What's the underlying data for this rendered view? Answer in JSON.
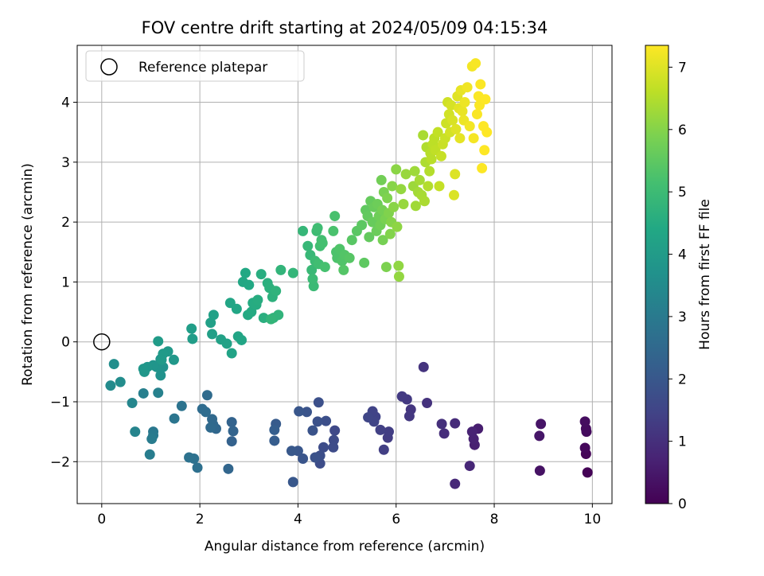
{
  "chart_data": {
    "type": "scatter",
    "title": "FOV centre drift starting at 2024/05/09 04:15:34",
    "xlabel": "Angular distance from reference (arcmin)",
    "ylabel": "Rotation from reference (arcmin)",
    "xlim": [
      -0.5,
      10.4
    ],
    "ylim": [
      -2.7,
      4.95
    ],
    "xticks": [
      0,
      2,
      4,
      6,
      8,
      10
    ],
    "yticks": [
      -2,
      -1,
      0,
      1,
      2,
      3,
      4
    ],
    "grid": true,
    "legend": {
      "position": "top-left",
      "entries": [
        "Reference platepar"
      ]
    },
    "reference_point": {
      "label": "Reference platepar",
      "x": 0,
      "y": 0
    },
    "colorbar": {
      "label": "Hours from first FF file",
      "colormap": "viridis",
      "range": [
        0,
        7.35
      ],
      "ticks": [
        0,
        1,
        2,
        3,
        4,
        5,
        6,
        7
      ]
    },
    "points": [
      [
        9.9,
        -2.18,
        0.05
      ],
      [
        9.87,
        -1.87,
        0.1
      ],
      [
        9.85,
        -1.77,
        0.15
      ],
      [
        9.88,
        -1.5,
        0.2
      ],
      [
        9.87,
        -1.45,
        0.22
      ],
      [
        9.85,
        -1.33,
        0.25
      ],
      [
        8.93,
        -2.15,
        0.35
      ],
      [
        8.95,
        -1.37,
        0.4
      ],
      [
        8.92,
        -1.57,
        0.45
      ],
      [
        7.67,
        -1.45,
        0.6
      ],
      [
        7.6,
        -1.72,
        0.65
      ],
      [
        7.58,
        -1.62,
        0.7
      ],
      [
        7.55,
        -1.5,
        0.72
      ],
      [
        7.5,
        -2.07,
        0.8
      ],
      [
        7.2,
        -2.37,
        0.85
      ],
      [
        7.2,
        -1.36,
        0.9
      ],
      [
        6.98,
        -1.53,
        0.95
      ],
      [
        6.93,
        -1.37,
        1.0
      ],
      [
        6.63,
        -1.02,
        1.05
      ],
      [
        6.56,
        -0.42,
        1.1
      ],
      [
        6.3,
        -1.13,
        1.15
      ],
      [
        6.27,
        -1.24,
        1.2
      ],
      [
        6.22,
        -0.96,
        1.22
      ],
      [
        6.12,
        -0.91,
        1.25
      ],
      [
        5.83,
        -1.6,
        1.3
      ],
      [
        5.85,
        -1.5,
        1.33
      ],
      [
        5.75,
        -1.8,
        1.36
      ],
      [
        5.68,
        -1.47,
        1.4
      ],
      [
        5.58,
        -1.25,
        1.45
      ],
      [
        5.52,
        -1.16,
        1.48
      ],
      [
        5.55,
        -1.33,
        1.5
      ],
      [
        5.43,
        -1.26,
        1.53
      ],
      [
        4.75,
        -1.48,
        1.6
      ],
      [
        4.73,
        -1.64,
        1.65
      ],
      [
        4.72,
        -1.76,
        1.68
      ],
      [
        4.52,
        -1.76,
        1.7
      ],
      [
        4.45,
        -2.03,
        1.72
      ],
      [
        4.45,
        -1.9,
        1.75
      ],
      [
        4.57,
        -1.32,
        1.78
      ],
      [
        4.42,
        -1.01,
        1.8
      ],
      [
        4.4,
        -1.33,
        1.82
      ],
      [
        4.35,
        -1.93,
        1.85
      ],
      [
        4.3,
        -1.48,
        1.88
      ],
      [
        4.18,
        -1.17,
        1.9
      ],
      [
        4.1,
        -1.95,
        1.92
      ],
      [
        4.0,
        -1.82,
        1.95
      ],
      [
        4.02,
        -1.16,
        1.97
      ],
      [
        3.9,
        -2.34,
        2.0
      ],
      [
        3.87,
        -1.82,
        2.02
      ],
      [
        3.55,
        -1.37,
        2.1
      ],
      [
        3.52,
        -1.65,
        2.15
      ],
      [
        3.52,
        -1.47,
        2.18
      ],
      [
        2.65,
        -1.66,
        2.3
      ],
      [
        2.65,
        -1.34,
        2.33
      ],
      [
        2.68,
        -1.49,
        2.36
      ],
      [
        2.58,
        -2.12,
        2.4
      ],
      [
        2.33,
        -1.45,
        2.45
      ],
      [
        2.27,
        -1.38,
        2.48
      ],
      [
        2.25,
        -1.29,
        2.5
      ],
      [
        2.22,
        -1.43,
        2.52
      ],
      [
        2.15,
        -0.89,
        2.55
      ],
      [
        2.12,
        -1.17,
        2.58
      ],
      [
        2.05,
        -1.12,
        2.6
      ],
      [
        1.95,
        -2.1,
        2.7
      ],
      [
        1.88,
        -1.95,
        2.73
      ],
      [
        1.78,
        -1.93,
        2.76
      ],
      [
        1.63,
        -1.07,
        2.8
      ],
      [
        1.48,
        -1.28,
        2.85
      ],
      [
        1.05,
        -1.5,
        2.95
      ],
      [
        1.05,
        -1.56,
        3.0
      ],
      [
        1.02,
        -1.62,
        3.05
      ],
      [
        0.98,
        -1.88,
        3.1
      ],
      [
        0.85,
        -0.86,
        3.15
      ],
      [
        1.15,
        -0.85,
        3.2
      ],
      [
        0.68,
        -1.5,
        3.3
      ],
      [
        0.62,
        -1.02,
        3.35
      ],
      [
        0.18,
        -0.73,
        3.5
      ],
      [
        0.38,
        -0.67,
        3.55
      ],
      [
        0.25,
        -0.37,
        3.6
      ],
      [
        1.2,
        -0.56,
        3.7
      ],
      [
        1.25,
        -0.42,
        3.72
      ],
      [
        1.2,
        -0.29,
        3.75
      ],
      [
        1.12,
        -0.42,
        3.78
      ],
      [
        1.05,
        -0.39,
        3.8
      ],
      [
        0.93,
        -0.42,
        3.82
      ],
      [
        0.87,
        -0.5,
        3.85
      ],
      [
        0.85,
        -0.45,
        3.87
      ],
      [
        1.47,
        -0.3,
        3.9
      ],
      [
        1.35,
        -0.16,
        3.92
      ],
      [
        1.25,
        -0.2,
        3.95
      ],
      [
        1.22,
        -0.3,
        3.97
      ],
      [
        1.15,
        0.01,
        4.0
      ],
      [
        1.85,
        0.05,
        4.05
      ],
      [
        1.83,
        0.22,
        4.08
      ],
      [
        2.25,
        0.13,
        4.12
      ],
      [
        2.22,
        0.32,
        4.15
      ],
      [
        2.28,
        0.45,
        4.18
      ],
      [
        2.43,
        0.04,
        4.2
      ],
      [
        2.55,
        -0.03,
        4.22
      ],
      [
        2.65,
        -0.19,
        4.25
      ],
      [
        2.78,
        0.09,
        4.28
      ],
      [
        2.85,
        0.03,
        4.3
      ],
      [
        2.62,
        0.65,
        4.33
      ],
      [
        2.75,
        0.55,
        4.36
      ],
      [
        2.88,
        1.0,
        4.38
      ],
      [
        2.93,
        1.15,
        4.4
      ],
      [
        3.0,
        0.95,
        4.42
      ],
      [
        2.98,
        0.45,
        4.45
      ],
      [
        3.05,
        0.5,
        4.48
      ],
      [
        3.08,
        0.65,
        4.5
      ],
      [
        3.15,
        0.62,
        4.52
      ],
      [
        3.18,
        0.7,
        4.55
      ],
      [
        3.25,
        1.13,
        4.57
      ],
      [
        3.3,
        0.4,
        4.6
      ],
      [
        3.38,
        0.98,
        4.63
      ],
      [
        3.42,
        0.9,
        4.65
      ],
      [
        3.48,
        0.75,
        4.67
      ],
      [
        3.5,
        0.4,
        4.7
      ],
      [
        3.55,
        0.85,
        4.72
      ],
      [
        3.6,
        0.45,
        4.75
      ],
      [
        3.65,
        1.2,
        4.78
      ],
      [
        3.45,
        0.38,
        4.8
      ],
      [
        3.9,
        1.15,
        4.82
      ],
      [
        4.1,
        1.85,
        4.85
      ],
      [
        4.2,
        1.6,
        4.88
      ],
      [
        4.25,
        1.45,
        4.9
      ],
      [
        4.28,
        1.2,
        4.92
      ],
      [
        4.32,
        0.93,
        4.95
      ],
      [
        4.3,
        1.05,
        4.97
      ],
      [
        4.35,
        1.35,
        5.0
      ],
      [
        4.38,
        1.85,
        5.02
      ],
      [
        4.4,
        1.9,
        5.05
      ],
      [
        4.42,
        1.3,
        5.08
      ],
      [
        4.45,
        1.6,
        5.1
      ],
      [
        4.48,
        1.7,
        5.12
      ],
      [
        4.5,
        1.65,
        5.15
      ],
      [
        4.55,
        1.25,
        5.17
      ],
      [
        4.75,
        2.1,
        5.2
      ],
      [
        4.72,
        1.85,
        5.22
      ],
      [
        4.78,
        1.5,
        5.25
      ],
      [
        4.8,
        1.4,
        5.27
      ],
      [
        4.85,
        1.55,
        5.3
      ],
      [
        4.9,
        1.35,
        5.32
      ],
      [
        4.95,
        1.45,
        5.35
      ],
      [
        4.93,
        1.2,
        5.37
      ],
      [
        5.05,
        1.4,
        5.4
      ],
      [
        5.1,
        1.7,
        5.42
      ],
      [
        5.2,
        1.85,
        5.45
      ],
      [
        5.3,
        1.95,
        5.47
      ],
      [
        5.35,
        1.32,
        5.5
      ],
      [
        5.38,
        2.2,
        5.52
      ],
      [
        5.42,
        2.1,
        5.55
      ],
      [
        5.45,
        1.75,
        5.57
      ],
      [
        5.48,
        2.35,
        5.6
      ],
      [
        5.52,
        2.0,
        5.62
      ],
      [
        5.55,
        2.25,
        5.65
      ],
      [
        5.6,
        1.85,
        5.67
      ],
      [
        5.62,
        2.3,
        5.7
      ],
      [
        5.65,
        2.1,
        5.72
      ],
      [
        5.68,
        1.95,
        5.75
      ],
      [
        5.7,
        2.7,
        5.77
      ],
      [
        5.72,
        2.2,
        5.8
      ],
      [
        5.73,
        1.7,
        5.82
      ],
      [
        5.75,
        2.5,
        5.85
      ],
      [
        5.78,
        2.05,
        5.87
      ],
      [
        5.8,
        1.25,
        5.9
      ],
      [
        5.82,
        2.4,
        5.92
      ],
      [
        5.85,
        2.15,
        5.95
      ],
      [
        5.88,
        1.8,
        5.97
      ],
      [
        5.9,
        2.0,
        6.0
      ],
      [
        5.92,
        2.6,
        6.02
      ],
      [
        5.95,
        2.25,
        6.05
      ],
      [
        6.0,
        2.88,
        6.07
      ],
      [
        6.02,
        1.92,
        6.1
      ],
      [
        6.05,
        1.27,
        6.12
      ],
      [
        6.06,
        1.09,
        6.15
      ],
      [
        6.1,
        2.55,
        6.17
      ],
      [
        6.15,
        2.3,
        6.2
      ],
      [
        6.2,
        2.8,
        6.22
      ],
      [
        6.35,
        2.6,
        6.25
      ],
      [
        6.38,
        2.85,
        6.28
      ],
      [
        6.4,
        2.27,
        6.3
      ],
      [
        6.45,
        2.5,
        6.33
      ],
      [
        6.48,
        2.7,
        6.35
      ],
      [
        6.52,
        2.45,
        6.38
      ],
      [
        6.55,
        3.45,
        6.4
      ],
      [
        6.58,
        2.35,
        6.42
      ],
      [
        6.6,
        3.0,
        6.45
      ],
      [
        6.62,
        3.25,
        6.47
      ],
      [
        6.65,
        2.6,
        6.5
      ],
      [
        6.68,
        2.85,
        6.52
      ],
      [
        6.7,
        3.15,
        6.55
      ],
      [
        6.72,
        3.05,
        6.57
      ],
      [
        6.75,
        3.3,
        6.6
      ],
      [
        6.78,
        3.4,
        6.62
      ],
      [
        6.8,
        3.2,
        6.65
      ],
      [
        6.85,
        3.5,
        6.67
      ],
      [
        6.88,
        2.6,
        6.7
      ],
      [
        6.92,
        3.1,
        6.72
      ],
      [
        6.95,
        3.3,
        6.75
      ],
      [
        7.0,
        3.4,
        6.77
      ],
      [
        7.02,
        3.65,
        6.8
      ],
      [
        7.05,
        4.0,
        6.82
      ],
      [
        7.08,
        3.8,
        6.85
      ],
      [
        7.1,
        3.5,
        6.87
      ],
      [
        7.12,
        3.95,
        6.9
      ],
      [
        7.15,
        3.7,
        6.92
      ],
      [
        7.18,
        2.45,
        6.95
      ],
      [
        7.2,
        2.8,
        6.97
      ],
      [
        7.22,
        3.55,
        7.0
      ],
      [
        7.25,
        4.1,
        7.02
      ],
      [
        7.28,
        3.9,
        7.05
      ],
      [
        7.3,
        3.4,
        7.07
      ],
      [
        7.32,
        4.2,
        7.1
      ],
      [
        7.35,
        3.85,
        7.12
      ],
      [
        7.38,
        3.7,
        7.15
      ],
      [
        7.4,
        4.0,
        7.17
      ],
      [
        7.45,
        4.25,
        7.2
      ],
      [
        7.5,
        3.6,
        7.22
      ],
      [
        7.55,
        4.6,
        7.24
      ],
      [
        7.58,
        3.4,
        7.26
      ],
      [
        7.62,
        4.65,
        7.28
      ],
      [
        7.65,
        3.8,
        7.3
      ],
      [
        7.68,
        4.1,
        7.31
      ],
      [
        7.7,
        3.95,
        7.32
      ],
      [
        7.72,
        4.3,
        7.33
      ],
      [
        7.75,
        2.9,
        7.34
      ],
      [
        7.78,
        3.6,
        7.35
      ],
      [
        7.8,
        3.2,
        7.36
      ],
      [
        7.82,
        4.05,
        7.37
      ],
      [
        7.85,
        3.5,
        7.38
      ]
    ]
  }
}
